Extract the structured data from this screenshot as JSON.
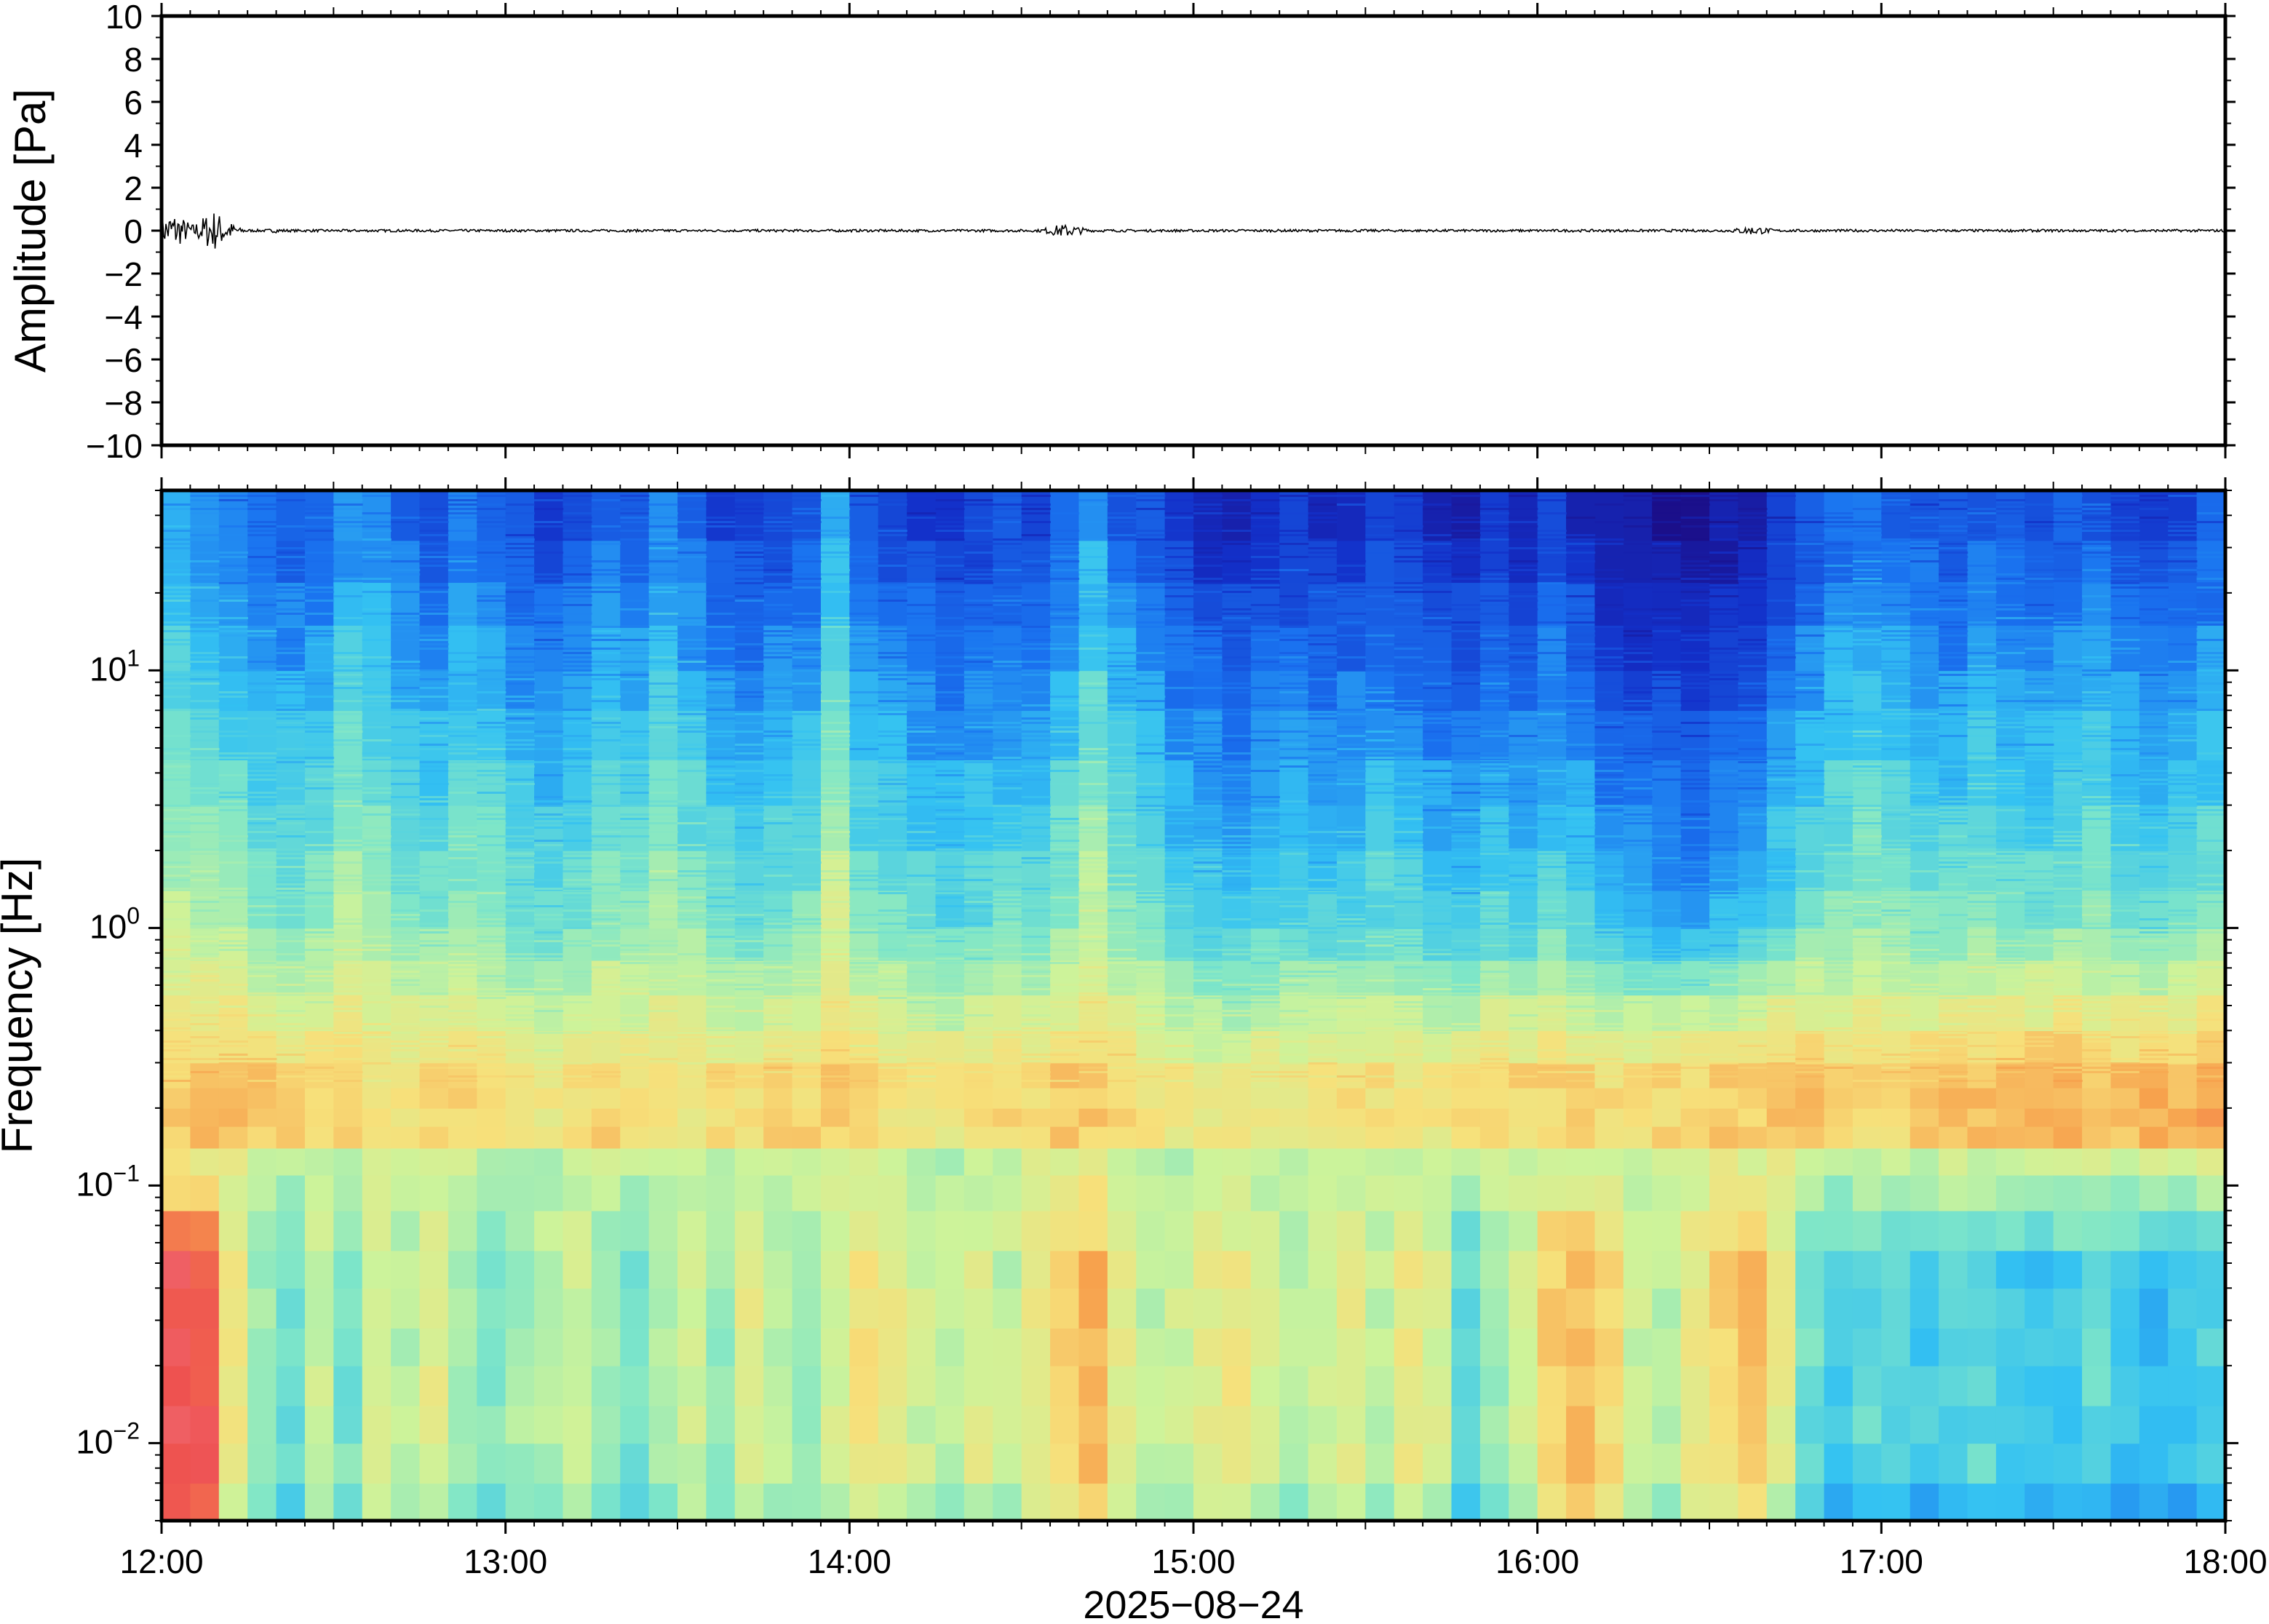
{
  "chart_data": [
    {
      "type": "line",
      "panel": "waveform",
      "ylabel": "Amplitude [Pa]",
      "ylim": [
        -10,
        10
      ],
      "yticks": [
        -10,
        -8,
        -6,
        -4,
        -2,
        0,
        2,
        4,
        6,
        8,
        10
      ],
      "ytick_labels": [
        "−10",
        "−8",
        "−6",
        "−4",
        "−2",
        "0",
        "2",
        "4",
        "6",
        "8",
        "10"
      ],
      "x_range": [
        "12:00",
        "18:00"
      ],
      "grid": false,
      "series": [
        {
          "points": [
            {
              "time": "12:00",
              "amplitude": 0.0
            },
            {
              "time": "12:02",
              "amplitude": -0.9
            },
            {
              "time": "12:02",
              "amplitude": 0.8
            },
            {
              "time": "12:03",
              "amplitude": -0.5
            },
            {
              "time": "12:05",
              "amplitude": 0.3
            },
            {
              "time": "12:07",
              "amplitude": -0.3
            },
            {
              "time": "12:08",
              "amplitude": -0.6
            },
            {
              "time": "12:09",
              "amplitude": 1.0
            },
            {
              "time": "12:10",
              "amplitude": -0.4
            },
            {
              "time": "12:12",
              "amplitude": 0.2
            },
            {
              "time": "12:20",
              "amplitude": 0.1
            },
            {
              "time": "13:00",
              "amplitude": 0.0
            },
            {
              "time": "14:00",
              "amplitude": 0.0
            },
            {
              "time": "14:37",
              "amplitude": 0.3
            },
            {
              "time": "14:38",
              "amplitude": -0.3
            },
            {
              "time": "15:00",
              "amplitude": 0.0
            },
            {
              "time": "16:00",
              "amplitude": 0.0
            },
            {
              "time": "16:37",
              "amplitude": 0.2
            },
            {
              "time": "16:38",
              "amplitude": -0.2
            },
            {
              "time": "17:00",
              "amplitude": 0.0
            },
            {
              "time": "18:00",
              "amplitude": 0.0
            }
          ]
        }
      ]
    },
    {
      "type": "heatmap",
      "panel": "spectrogram",
      "ylabel": "Frequency [Hz]",
      "yscale": "log",
      "ylim": [
        0.005,
        50
      ],
      "yticks": [
        0.01,
        0.1,
        1,
        10
      ],
      "ytick_labels": [
        {
          "base": "10",
          "exp": "−2"
        },
        {
          "base": "10",
          "exp": "−1"
        },
        {
          "base": "10",
          "exp": "0"
        },
        {
          "base": "10",
          "exp": "1"
        }
      ],
      "xticks": [
        "12:00",
        "13:00",
        "14:00",
        "15:00",
        "16:00",
        "17:00",
        "18:00"
      ],
      "xlabel": "2025−08−24",
      "colormap": [
        "#1b0f8a",
        "#1330c9",
        "#1a73f0",
        "#34c2f2",
        "#7fe6c8",
        "#cdf39a",
        "#f7e07a",
        "#f7a04c",
        "#ee5050",
        "#f28a9a"
      ],
      "column_times": [
        "12:00",
        "12:05",
        "12:10",
        "12:15",
        "12:20",
        "12:25",
        "12:30",
        "12:35",
        "12:40",
        "12:45",
        "12:50",
        "12:55",
        "13:00",
        "13:05",
        "13:10",
        "13:15",
        "13:20",
        "13:25",
        "13:30",
        "13:35",
        "13:40",
        "13:45",
        "13:50",
        "13:55",
        "14:00",
        "14:05",
        "14:10",
        "14:15",
        "14:20",
        "14:25",
        "14:30",
        "14:35",
        "14:40",
        "14:45",
        "14:50",
        "14:55",
        "15:00",
        "15:05",
        "15:10",
        "15:15",
        "15:20",
        "15:25",
        "15:30",
        "15:35",
        "15:40",
        "15:45",
        "15:50",
        "15:55",
        "16:00",
        "16:05",
        "16:10",
        "16:15",
        "16:20",
        "16:25",
        "16:30",
        "16:35",
        "16:40",
        "16:45",
        "16:50",
        "16:55",
        "17:00",
        "17:05",
        "17:10",
        "17:15",
        "17:20",
        "17:25",
        "17:30",
        "17:35",
        "17:40",
        "17:45",
        "17:50",
        "17:55"
      ],
      "band_edges_hz": [
        0.005,
        0.007,
        0.01,
        0.014,
        0.02,
        0.028,
        0.04,
        0.056,
        0.08,
        0.11,
        0.14,
        0.17,
        0.2,
        0.24,
        0.3,
        0.4,
        0.55,
        0.75,
        1.0,
        1.4,
        2.0,
        3.0,
        4.5,
        7.0,
        10,
        15,
        22,
        32,
        50
      ],
      "levels_note_units": "relative power 0-1",
      "hf_level": [
        0.38,
        0.35,
        0.33,
        0.3,
        0.28,
        0.3,
        0.36,
        0.34,
        0.3,
        0.28,
        0.32,
        0.3,
        0.26,
        0.24,
        0.26,
        0.3,
        0.28,
        0.34,
        0.3,
        0.26,
        0.24,
        0.26,
        0.28,
        0.4,
        0.28,
        0.26,
        0.24,
        0.22,
        0.24,
        0.26,
        0.24,
        0.3,
        0.38,
        0.3,
        0.26,
        0.22,
        0.2,
        0.19,
        0.2,
        0.22,
        0.2,
        0.22,
        0.24,
        0.22,
        0.2,
        0.18,
        0.22,
        0.2,
        0.24,
        0.2,
        0.16,
        0.14,
        0.13,
        0.12,
        0.14,
        0.16,
        0.22,
        0.26,
        0.3,
        0.32,
        0.3,
        0.28,
        0.26,
        0.3,
        0.28,
        0.26,
        0.28,
        0.3,
        0.26,
        0.24,
        0.26,
        0.28
      ],
      "microbarom_level": [
        0.68,
        0.7,
        0.7,
        0.68,
        0.66,
        0.66,
        0.66,
        0.64,
        0.64,
        0.66,
        0.66,
        0.64,
        0.62,
        0.62,
        0.64,
        0.66,
        0.64,
        0.62,
        0.62,
        0.64,
        0.64,
        0.66,
        0.66,
        0.68,
        0.66,
        0.64,
        0.62,
        0.62,
        0.64,
        0.66,
        0.66,
        0.68,
        0.68,
        0.66,
        0.64,
        0.62,
        0.6,
        0.6,
        0.62,
        0.62,
        0.64,
        0.64,
        0.64,
        0.62,
        0.62,
        0.64,
        0.66,
        0.66,
        0.66,
        0.66,
        0.64,
        0.64,
        0.66,
        0.66,
        0.68,
        0.68,
        0.7,
        0.7,
        0.68,
        0.66,
        0.66,
        0.68,
        0.7,
        0.7,
        0.7,
        0.72,
        0.72,
        0.7,
        0.7,
        0.72,
        0.72,
        0.74
      ],
      "lf_level": [
        0.9,
        0.88,
        0.62,
        0.5,
        0.42,
        0.56,
        0.44,
        0.58,
        0.52,
        0.6,
        0.5,
        0.46,
        0.5,
        0.52,
        0.56,
        0.48,
        0.44,
        0.52,
        0.56,
        0.48,
        0.6,
        0.54,
        0.5,
        0.58,
        0.66,
        0.62,
        0.56,
        0.52,
        0.6,
        0.54,
        0.62,
        0.68,
        0.74,
        0.6,
        0.54,
        0.56,
        0.6,
        0.64,
        0.58,
        0.52,
        0.56,
        0.6,
        0.54,
        0.62,
        0.58,
        0.4,
        0.5,
        0.56,
        0.7,
        0.72,
        0.66,
        0.56,
        0.52,
        0.62,
        0.68,
        0.72,
        0.6,
        0.42,
        0.36,
        0.4,
        0.38,
        0.36,
        0.38,
        0.4,
        0.36,
        0.34,
        0.36,
        0.4,
        0.34,
        0.32,
        0.36,
        0.38
      ]
    }
  ]
}
